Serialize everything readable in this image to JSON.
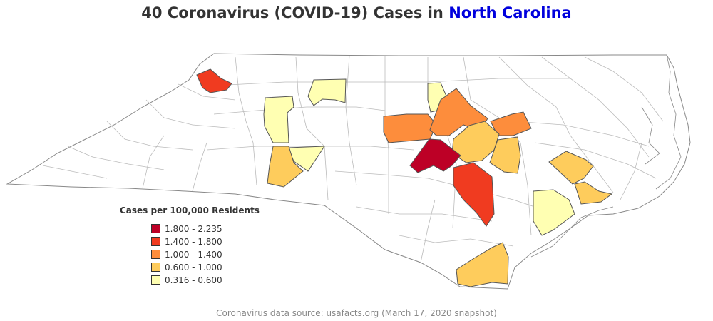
{
  "title": {
    "prefix": "40 Coronavirus (COVID-19) Cases in ",
    "highlight": "North Carolina",
    "highlight_color": "#0000dd"
  },
  "legend": {
    "title": "Cases per 100,000 Residents",
    "classes": [
      {
        "label": "1.800 - 2.235",
        "color": "#bd0026"
      },
      {
        "label": "1.400 - 1.800",
        "color": "#f03b20"
      },
      {
        "label": "1.000 - 1.400",
        "color": "#fd8d3c"
      },
      {
        "label": "0.600 - 1.000",
        "color": "#fecc5c"
      },
      {
        "label": "0.316 - 0.600",
        "color": "#ffffb2"
      }
    ]
  },
  "footnote": "Coronavirus data source: usafacts.org (March 17, 2020 snapshot)",
  "map_colors": {
    "unreported_fill": "#ffffff",
    "county_border": "#bbbbbb",
    "state_border": "#888888"
  }
}
